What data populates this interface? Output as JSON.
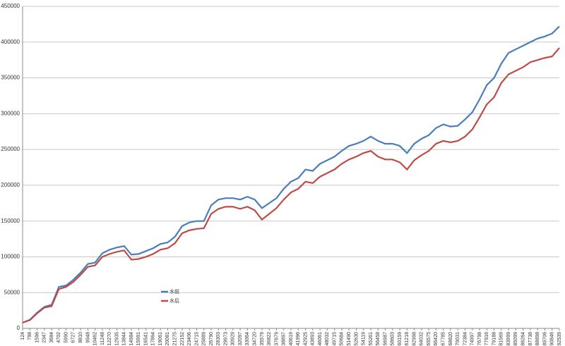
{
  "chart_data": {
    "type": "line",
    "categories": [
      "124",
      "798",
      "1596",
      "2347",
      "3684",
      "4702",
      "5990",
      "6727",
      "8810",
      "9948",
      "10462",
      "11248",
      "12270",
      "12935",
      "13844",
      "14984",
      "15991",
      "16541",
      "17864",
      "19061",
      "20081",
      "21275",
      "22152",
      "23406",
      "24715",
      "25889",
      "26790",
      "28303",
      "29973",
      "30929",
      "32097",
      "33064",
      "34720",
      "35579",
      "36822",
      "37679",
      "38897",
      "40619",
      "41996",
      "42925",
      "43893",
      "46061",
      "48032",
      "49715",
      "50684",
      "51490",
      "52630",
      "54119",
      "55261",
      "56458",
      "56987",
      "58603",
      "60159",
      "61218",
      "62998",
      "64032",
      "65575",
      "66420",
      "67785",
      "68820",
      "70031",
      "72384",
      "74997",
      "76798",
      "77916",
      "79188",
      "81569",
      "83999",
      "85099",
      "86264",
      "87738",
      "88898",
      "89706",
      "90846",
      "92539"
    ],
    "series": [
      {
        "name": "水前",
        "color": "#4a7ebb",
        "values": [
          8000,
          12000,
          22000,
          30000,
          33000,
          58000,
          60000,
          68000,
          78000,
          90000,
          92000,
          105000,
          110000,
          113000,
          115000,
          103000,
          104000,
          108000,
          112000,
          118000,
          120000,
          128000,
          143000,
          148000,
          150000,
          150000,
          172000,
          180000,
          182000,
          182000,
          180000,
          184000,
          180000,
          168000,
          175000,
          182000,
          195000,
          205000,
          210000,
          222000,
          220000,
          230000,
          235000,
          240000,
          248000,
          255000,
          258000,
          262000,
          268000,
          262000,
          258000,
          258000,
          255000,
          245000,
          258000,
          265000,
          270000,
          280000,
          285000,
          282000,
          283000,
          292000,
          302000,
          320000,
          340000,
          350000,
          370000,
          385000,
          390000,
          395000,
          400000,
          405000,
          408000,
          412000,
          422000
        ]
      },
      {
        "name": "水后",
        "color": "#be4b48",
        "values": [
          8000,
          11500,
          21000,
          29000,
          31000,
          55000,
          58000,
          65000,
          75000,
          86000,
          88000,
          100000,
          104000,
          107000,
          109000,
          96000,
          97000,
          100000,
          104000,
          110000,
          112000,
          119000,
          133000,
          137000,
          139000,
          140000,
          160000,
          167000,
          170000,
          170000,
          167000,
          170000,
          165000,
          152000,
          160000,
          168000,
          180000,
          190000,
          195000,
          205000,
          203000,
          212000,
          217000,
          222000,
          230000,
          236000,
          240000,
          245000,
          248000,
          240000,
          236000,
          236000,
          232000,
          222000,
          235000,
          242000,
          248000,
          258000,
          262000,
          260000,
          262000,
          268000,
          278000,
          295000,
          313000,
          323000,
          343000,
          355000,
          360000,
          365000,
          372000,
          375000,
          378000,
          380000,
          392000
        ]
      }
    ],
    "ylim": [
      0,
      450000
    ],
    "yticks": [
      0,
      50000,
      100000,
      150000,
      200000,
      250000,
      300000,
      350000,
      400000,
      450000
    ],
    "grid": true
  }
}
